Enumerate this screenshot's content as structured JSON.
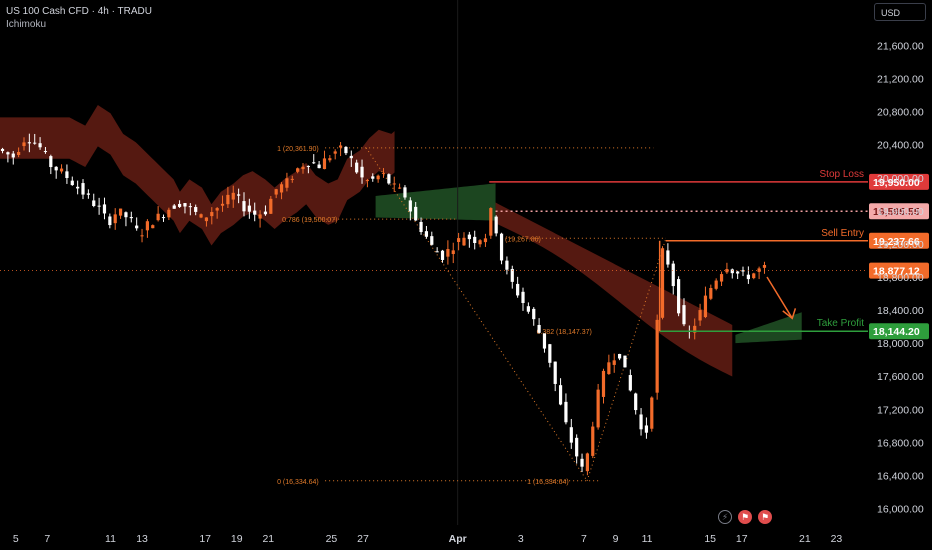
{
  "legend": {
    "symbol": "US 100 Cash CFD · 4h · TRADU",
    "indicator": "Ichimoku"
  },
  "currency": "USD",
  "icons": [
    "lightning-icon",
    "flag-icon",
    "flag-icon"
  ],
  "colors": {
    "background": "#000000",
    "up": "#f26b2a",
    "down": "#ffffff",
    "cloud_bear": "#5a1a12",
    "cloud_bull": "#1d4a22",
    "stop_loss": "#e03a3a",
    "sell_entry": "#f26b2a",
    "take_profit": "#2e9e3c",
    "fib": "#e07a2a",
    "arrow": "#f26b2a"
  },
  "chart_data": {
    "type": "candlestick",
    "y_axis": {
      "min": 15800,
      "max": 22150,
      "ticks": [
        16000,
        16400,
        16800,
        17200,
        17600,
        18000,
        18400,
        18800,
        19200,
        19600,
        20000,
        20400,
        20800,
        21200,
        21600
      ],
      "tick_labels": [
        "16,000.00",
        "16,400.00",
        "16,800.00",
        "17,200.00",
        "17,600.00",
        "18,000.00",
        "18,400.00",
        "18,800.00",
        "19,200.00",
        "19,600.00",
        "20,000.00",
        "20,400.00",
        "20,800.00",
        "21,200.00",
        "21,600.00"
      ]
    },
    "x_axis": {
      "labels": [
        "5",
        "7",
        "11",
        "13",
        "17",
        "19",
        "21",
        "25",
        "27",
        "Apr",
        "3",
        "7",
        "9",
        "11",
        "15",
        "17",
        "21",
        "23"
      ],
      "positions": [
        0,
        1,
        3,
        4,
        6,
        7,
        8,
        10,
        11,
        14,
        16,
        18,
        19,
        20,
        22,
        23,
        25,
        26
      ],
      "position_unit": "trading days from Mar 5 (Mar 5 = 0)",
      "range": [
        -0.5,
        27
      ]
    },
    "levels": [
      {
        "name": "Stop Loss",
        "value": 19950.0,
        "label": "19,950.00",
        "color": "#e03a3a"
      },
      {
        "name": "",
        "value": 19595.55,
        "label": "19,595.55",
        "color": "#f0a0a0"
      },
      {
        "name": "Sell Entry",
        "value": 19237.66,
        "label": "19,237.66",
        "color": "#f26b2a"
      },
      {
        "name": "",
        "value": 18877.12,
        "label": "18,877.12",
        "color": "#f26b2a"
      },
      {
        "name": "Take Profit",
        "value": 18144.2,
        "label": "18,144.20",
        "color": "#2e9e3c"
      }
    ],
    "fib_labels": [
      {
        "text": "1 (20,361.90)",
        "value": 20361.9
      },
      {
        "text": "0.786 (19,500.07)",
        "value": 19500.07
      },
      {
        "text": "0 (16,334.64)",
        "value": 16334.64
      },
      {
        "text": "(19,267.86)",
        "value": 19267.86
      },
      {
        "text": "0.382 (18,147.37)",
        "value": 18147.37
      },
      {
        "text": "1 (16,334.64)",
        "value": 16334.64
      }
    ],
    "price_path": [
      [
        -0.5,
        20350
      ],
      [
        0,
        20250
      ],
      [
        0.4,
        20500
      ],
      [
        0.8,
        20400
      ],
      [
        1.2,
        20150
      ],
      [
        1.6,
        20050
      ],
      [
        2,
        19900
      ],
      [
        2.4,
        19750
      ],
      [
        2.8,
        19600
      ],
      [
        3,
        19450
      ],
      [
        3.3,
        19600
      ],
      [
        3.7,
        19500
      ],
      [
        4,
        19300
      ],
      [
        4.3,
        19450
      ],
      [
        4.7,
        19550
      ],
      [
        5,
        19650
      ],
      [
        5.3,
        19700
      ],
      [
        5.7,
        19600
      ],
      [
        6,
        19500
      ],
      [
        6.3,
        19600
      ],
      [
        6.7,
        19700
      ],
      [
        7,
        19800
      ],
      [
        7.3,
        19650
      ],
      [
        7.7,
        19550
      ],
      [
        8,
        19600
      ],
      [
        8.3,
        19850
      ],
      [
        8.7,
        19950
      ],
      [
        9,
        20100
      ],
      [
        9.3,
        20200
      ],
      [
        9.7,
        20150
      ],
      [
        10,
        20250
      ],
      [
        10.3,
        20350
      ],
      [
        10.6,
        20300
      ],
      [
        11,
        20000
      ],
      [
        11.3,
        19950
      ],
      [
        11.7,
        20050
      ],
      [
        12,
        19900
      ],
      [
        12.4,
        19800
      ],
      [
        12.7,
        19500
      ],
      [
        13,
        19350
      ],
      [
        13.3,
        19150
      ],
      [
        13.6,
        19050
      ],
      [
        14,
        19200
      ],
      [
        14.3,
        19300
      ],
      [
        14.6,
        19250
      ],
      [
        15,
        19300
      ],
      [
        15.2,
        19700
      ],
      [
        15.4,
        19100
      ],
      [
        15.7,
        18800
      ],
      [
        16,
        18600
      ],
      [
        16.3,
        18400
      ],
      [
        16.6,
        18200
      ],
      [
        17,
        17800
      ],
      [
        17.3,
        17300
      ],
      [
        17.6,
        16900
      ],
      [
        17.9,
        16600
      ],
      [
        18.1,
        16400
      ],
      [
        18.3,
        16900
      ],
      [
        18.6,
        17500
      ],
      [
        18.9,
        17800
      ],
      [
        19.2,
        17900
      ],
      [
        19.5,
        17500
      ],
      [
        19.8,
        17100
      ],
      [
        20,
        16800
      ],
      [
        20.2,
        17200
      ],
      [
        20.4,
        18200
      ],
      [
        20.6,
        19200
      ],
      [
        20.8,
        18900
      ],
      [
        21,
        18600
      ],
      [
        21.2,
        18200
      ],
      [
        21.4,
        18100
      ],
      [
        21.7,
        18300
      ],
      [
        22,
        18600
      ],
      [
        22.3,
        18800
      ],
      [
        22.6,
        18950
      ],
      [
        22.9,
        18850
      ],
      [
        23.2,
        18800
      ],
      [
        23.5,
        18850
      ],
      [
        23.7,
        18900
      ]
    ]
  }
}
